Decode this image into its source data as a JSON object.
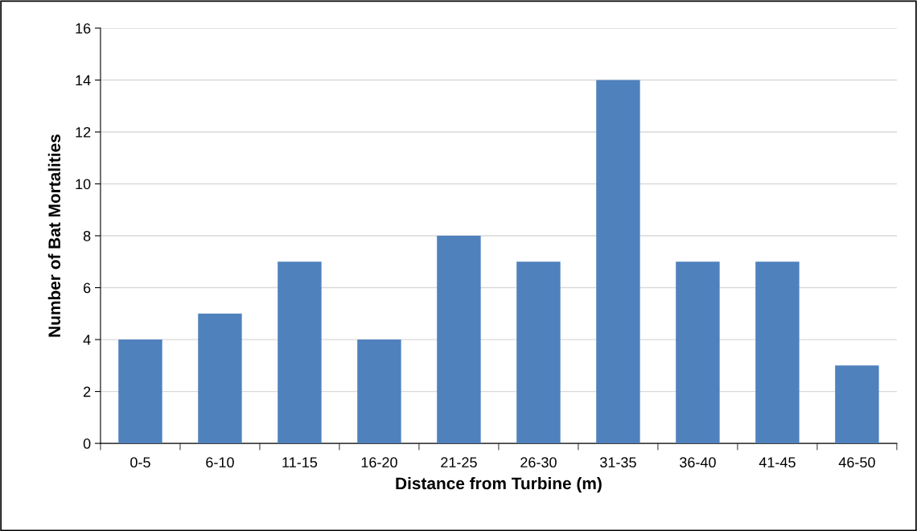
{
  "chart_data": {
    "type": "bar",
    "xlabel": "Distance from Turbine (m)",
    "ylabel": "Number of Bat Mortalities",
    "categories": [
      "0-5",
      "6-10",
      "11-15",
      "16-20",
      "21-25",
      "26-30",
      "31-35",
      "36-40",
      "41-45",
      "46-50"
    ],
    "values": [
      4,
      5,
      7,
      4,
      8,
      7,
      14,
      7,
      7,
      3
    ],
    "color": "#4f81bd",
    "ylim": [
      0,
      16
    ],
    "yticks": [
      0,
      2,
      4,
      6,
      8,
      10,
      12,
      14,
      16
    ],
    "grid": "y",
    "legend": false
  }
}
